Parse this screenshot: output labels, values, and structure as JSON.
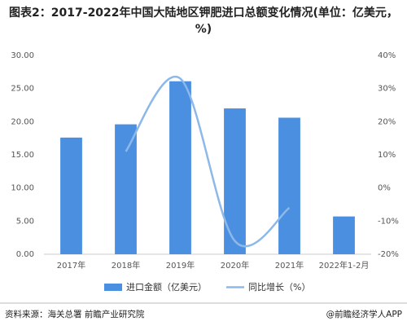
{
  "chart_data": {
    "type": "combo",
    "title": "图表2：2017-2022年中国大陆地区钾肥进口总额变化情况(单位：亿美元，%)",
    "categories": [
      "2017年",
      "2018年",
      "2019年",
      "2020年",
      "2021年",
      "2022年1-2月"
    ],
    "series": [
      {
        "name": "进口金额（亿美元）",
        "type": "bar",
        "color": "#4a8fe0",
        "values": [
          17.6,
          19.6,
          26.1,
          22.0,
          20.6,
          5.7
        ]
      },
      {
        "name": "同比增长（%）",
        "type": "line",
        "axis": "y2",
        "color": "#8db8ea",
        "values": [
          null,
          11,
          33,
          -16,
          -6,
          null
        ]
      }
    ],
    "ylim": [
      0,
      30
    ],
    "yticks": [
      {
        "value": 0,
        "label": "0.00"
      },
      {
        "value": 5,
        "label": "5.00"
      },
      {
        "value": 10,
        "label": "10.00"
      },
      {
        "value": 15,
        "label": "15.00"
      },
      {
        "value": 20,
        "label": "20.00"
      },
      {
        "value": 25,
        "label": "25.00"
      },
      {
        "value": 30,
        "label": "30.00"
      }
    ],
    "y2lim": [
      -20,
      40
    ],
    "y2ticks": [
      {
        "value": -20,
        "label": "-20%"
      },
      {
        "value": -10,
        "label": "-10%"
      },
      {
        "value": 0,
        "label": "0%"
      },
      {
        "value": 10,
        "label": "10%"
      },
      {
        "value": 20,
        "label": "20%"
      },
      {
        "value": 30,
        "label": "30%"
      },
      {
        "value": 40,
        "label": "40%"
      }
    ],
    "grid": false,
    "source": "资料来源：海关总署 前瞻产业研究院",
    "credit": "@前瞻经济学人APP"
  }
}
